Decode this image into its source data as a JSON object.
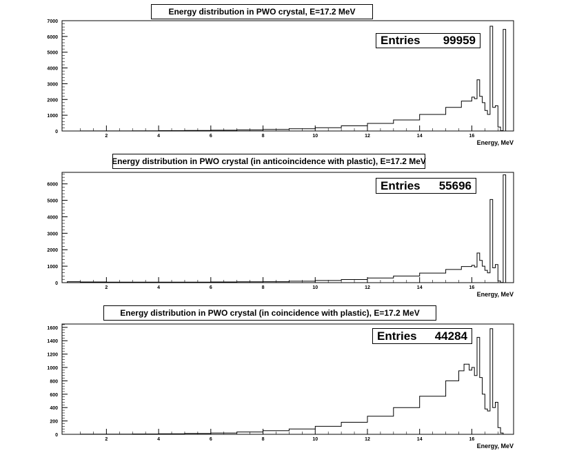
{
  "chart_data": [
    {
      "type": "bar",
      "title": "Energy distribution in PWO crystal, E=17.2 MeV",
      "xlabel": "Energy, MeV",
      "ylabel": "",
      "xlim": [
        0.3,
        17.6
      ],
      "ylim": [
        0,
        7000
      ],
      "xticks": [
        2,
        4,
        6,
        8,
        10,
        12,
        14,
        16
      ],
      "yticks": [
        0,
        1000,
        2000,
        3000,
        4000,
        5000,
        6000,
        7000
      ],
      "legend": {
        "label": "Entries",
        "value": "99959"
      },
      "points": [
        [
          0.3,
          0
        ],
        [
          1,
          5
        ],
        [
          2,
          5
        ],
        [
          3,
          10
        ],
        [
          4,
          20
        ],
        [
          5,
          30
        ],
        [
          6,
          50
        ],
        [
          7,
          70
        ],
        [
          8,
          100
        ],
        [
          9,
          140
        ],
        [
          10,
          210
        ],
        [
          11,
          330
        ],
        [
          12,
          480
        ],
        [
          13,
          700
        ],
        [
          14,
          1050
        ],
        [
          15,
          1500
        ],
        [
          15.6,
          1900
        ],
        [
          16.0,
          2150
        ],
        [
          16.1,
          2050
        ],
        [
          16.2,
          3250
        ],
        [
          16.3,
          2200
        ],
        [
          16.4,
          1800
        ],
        [
          16.5,
          1300
        ],
        [
          16.6,
          1050
        ],
        [
          16.7,
          6650
        ],
        [
          16.8,
          1500
        ],
        [
          16.9,
          1600
        ],
        [
          17.0,
          250
        ],
        [
          17.1,
          20
        ],
        [
          17.2,
          6450
        ],
        [
          17.3,
          0
        ],
        [
          17.6,
          0
        ]
      ]
    },
    {
      "type": "bar",
      "title": "Energy distribution in PWO crystal (in anticoincidence with plastic), E=17.2 MeV",
      "xlabel": "Energy, MeV",
      "ylabel": "",
      "xlim": [
        0.3,
        17.6
      ],
      "ylim": [
        0,
        6700
      ],
      "xticks": [
        2,
        4,
        6,
        8,
        10,
        12,
        14,
        16
      ],
      "yticks": [
        0,
        1000,
        2000,
        3000,
        4000,
        5000,
        6000
      ],
      "legend": {
        "label": "Entries",
        "value": "55696"
      },
      "points": [
        [
          0.3,
          0
        ],
        [
          0.5,
          60
        ],
        [
          1,
          40
        ],
        [
          2,
          30
        ],
        [
          3,
          30
        ],
        [
          4,
          30
        ],
        [
          5,
          30
        ],
        [
          6,
          40
        ],
        [
          7,
          50
        ],
        [
          8,
          60
        ],
        [
          9,
          90
        ],
        [
          10,
          130
        ],
        [
          11,
          190
        ],
        [
          12,
          280
        ],
        [
          13,
          400
        ],
        [
          14,
          580
        ],
        [
          15,
          800
        ],
        [
          15.6,
          980
        ],
        [
          16.0,
          1050
        ],
        [
          16.1,
          950
        ],
        [
          16.2,
          1800
        ],
        [
          16.3,
          1350
        ],
        [
          16.4,
          1000
        ],
        [
          16.5,
          750
        ],
        [
          16.6,
          600
        ],
        [
          16.7,
          5050
        ],
        [
          16.8,
          900
        ],
        [
          16.9,
          1100
        ],
        [
          17.0,
          100
        ],
        [
          17.1,
          10
        ],
        [
          17.2,
          6550
        ],
        [
          17.3,
          0
        ],
        [
          17.6,
          0
        ]
      ]
    },
    {
      "type": "bar",
      "title": "Energy distribution in PWO crystal (in coincidence with plastic), E=17.2 MeV",
      "xlabel": "Energy, MeV",
      "ylabel": "",
      "xlim": [
        0.3,
        17.6
      ],
      "ylim": [
        0,
        1650
      ],
      "xticks": [
        2,
        4,
        6,
        8,
        10,
        12,
        14,
        16
      ],
      "yticks": [
        0,
        200,
        400,
        600,
        800,
        1000,
        1200,
        1400,
        1600
      ],
      "legend": {
        "label": "Entries",
        "value": "44284"
      },
      "points": [
        [
          0.3,
          0
        ],
        [
          1,
          2
        ],
        [
          2,
          3
        ],
        [
          3,
          5
        ],
        [
          4,
          8
        ],
        [
          5,
          12
        ],
        [
          6,
          20
        ],
        [
          7,
          35
        ],
        [
          8,
          55
        ],
        [
          9,
          80
        ],
        [
          10,
          120
        ],
        [
          11,
          180
        ],
        [
          12,
          270
        ],
        [
          13,
          400
        ],
        [
          14,
          570
        ],
        [
          15,
          800
        ],
        [
          15.5,
          950
        ],
        [
          15.7,
          1050
        ],
        [
          15.9,
          960
        ],
        [
          16.0,
          1000
        ],
        [
          16.1,
          880
        ],
        [
          16.2,
          1450
        ],
        [
          16.3,
          850
        ],
        [
          16.4,
          600
        ],
        [
          16.5,
          380
        ],
        [
          16.6,
          350
        ],
        [
          16.7,
          1580
        ],
        [
          16.8,
          400
        ],
        [
          16.9,
          480
        ],
        [
          17.0,
          100
        ],
        [
          17.1,
          20
        ],
        [
          17.2,
          0
        ],
        [
          17.6,
          0
        ]
      ]
    }
  ]
}
